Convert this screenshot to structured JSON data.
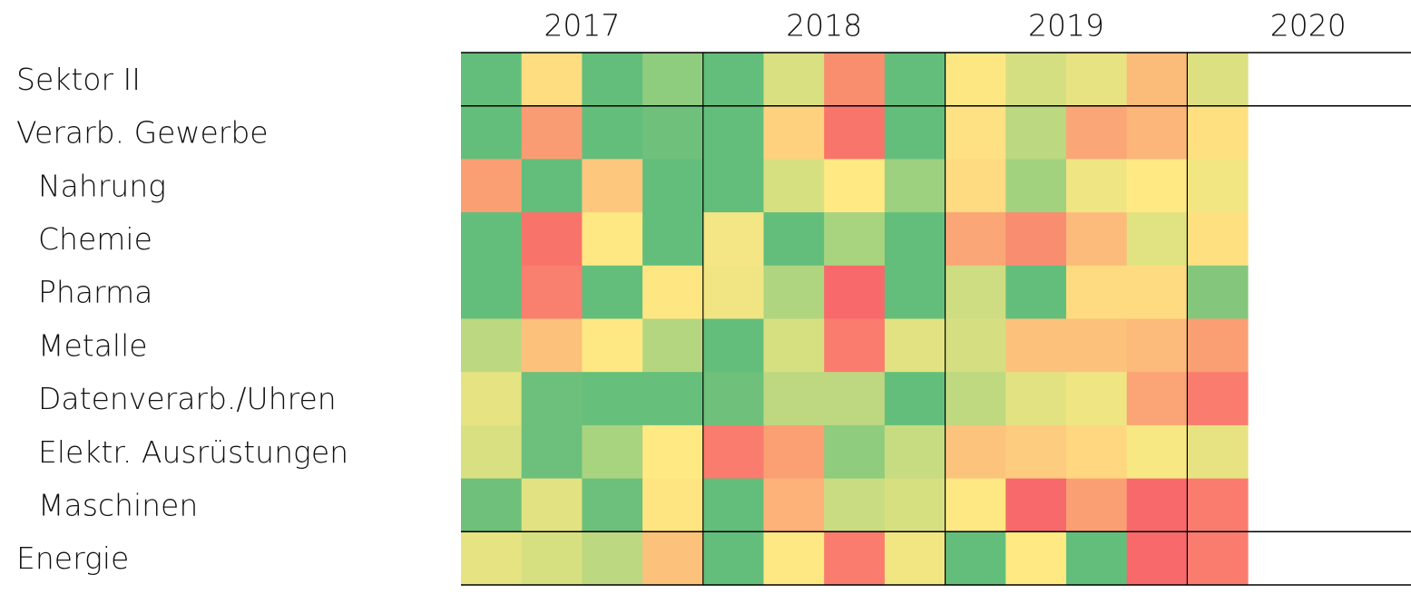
{
  "columns": [
    "2017",
    "2018",
    "2019",
    "2020"
  ],
  "quarters_per_column": 4,
  "groups": [
    {
      "label": "Sektor II",
      "colors": [
        "#63be7b",
        "#fedd81",
        "#63be7b",
        "#8ecc7e",
        "#63be7b",
        "#d9e081",
        "#f98e6f",
        "#63be7b",
        "#fde783",
        "#d4df81",
        "#e8e382",
        "#fbbb79",
        "#dce081"
      ]
    },
    {
      "label": "Verarb. Gewerbe",
      "colors": [
        "#63be7b",
        "#fa9c73",
        "#63be7b",
        "#6ec07b",
        "#63be7b",
        "#fed17f",
        "#f8756b",
        "#63be7b",
        "#fee182",
        "#bcd880",
        "#fba676",
        "#fcb679",
        "#fee081"
      ],
      "children": [
        {
          "label": "Nahrung",
          "colors": [
            "#fa9f73",
            "#63be7b",
            "#fdc77d",
            "#63be7b",
            "#63be7b",
            "#d7e081",
            "#fee983",
            "#9dd07f",
            "#fedb81",
            "#a3d27f",
            "#f0e583",
            "#fee983",
            "#f2e683"
          ]
        },
        {
          "label": "Chemie",
          "colors": [
            "#63be7b",
            "#f8746b",
            "#fee883",
            "#63be7b",
            "#f4e684",
            "#63be7b",
            "#a9d47f",
            "#63be7b",
            "#fba676",
            "#f98d6f",
            "#fcbb7a",
            "#e1e282",
            "#fee081"
          ]
        },
        {
          "label": "Pharma",
          "colors": [
            "#63be7b",
            "#f97f6e",
            "#63be7b",
            "#fee683",
            "#f1e583",
            "#b0d580",
            "#f8696b",
            "#63be7b",
            "#cedd81",
            "#63be7b",
            "#fedb81",
            "#fedb81",
            "#84c77c"
          ]
        },
        {
          "label": "Metalle",
          "colors": [
            "#bcd880",
            "#fcc17b",
            "#fee883",
            "#b5d680",
            "#63be7b",
            "#d7e081",
            "#f97c6e",
            "#e2e282",
            "#d5df81",
            "#fcc27b",
            "#fcc27b",
            "#fcbb7a",
            "#fa9f73"
          ]
        },
        {
          "label": "Datenverarb./Uhren",
          "colors": [
            "#e6e382",
            "#6cc07b",
            "#66bf7b",
            "#66bf7b",
            "#6ec07b",
            "#bdd880",
            "#bdd880",
            "#63be7b",
            "#bfd980",
            "#e3e282",
            "#f0e583",
            "#fba476",
            "#f97c6e"
          ]
        },
        {
          "label": "Elektr. Ausrüstungen",
          "colors": [
            "#d9e081",
            "#6cc07b",
            "#a8d37f",
            "#fee983",
            "#f97c6e",
            "#fba073",
            "#90cc7e",
            "#c7db80",
            "#fcc37c",
            "#fdcc7e",
            "#fed780",
            "#f8e883",
            "#e8e382"
          ]
        },
        {
          "label": "Maschinen",
          "colors": [
            "#6ec07b",
            "#e3e282",
            "#6cc07b",
            "#fee582",
            "#63be7b",
            "#fcb279",
            "#c9dc81",
            "#d7e081",
            "#fee883",
            "#f8696b",
            "#fa9f73",
            "#f8696b",
            "#f97c6e"
          ]
        }
      ]
    },
    {
      "label": "Energie",
      "colors": [
        "#e6e382",
        "#d7e081",
        "#bcd880",
        "#fcc17b",
        "#63be7b",
        "#fee883",
        "#f97c6e",
        "#f2e683",
        "#63be7b",
        "#fee983",
        "#63be7b",
        "#f8696b",
        "#f97c6e"
      ]
    }
  ]
}
